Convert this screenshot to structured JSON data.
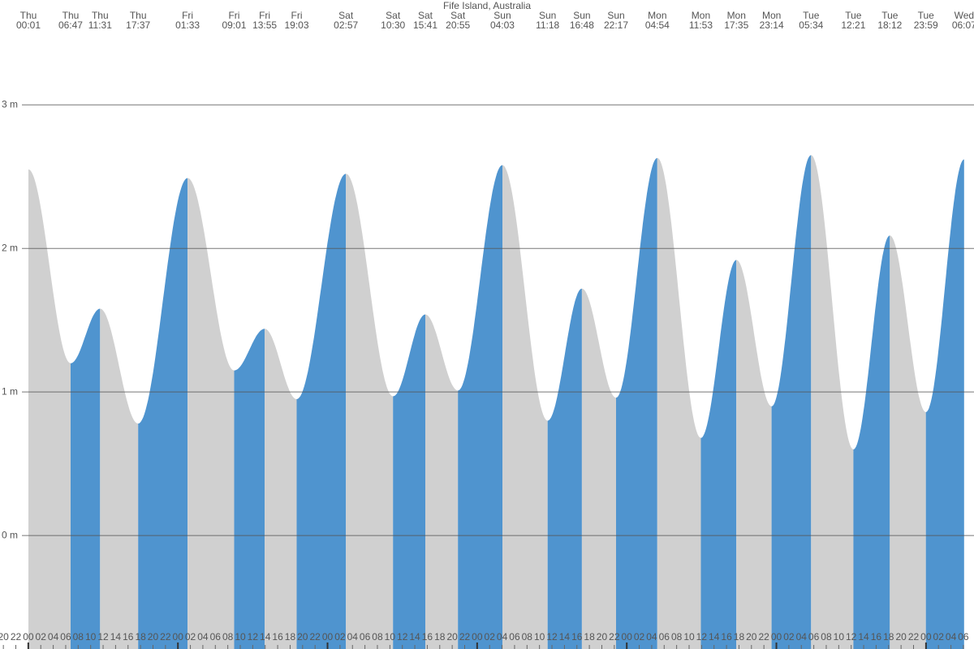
{
  "chart_data": {
    "type": "tide",
    "title": "Fife Island, Australia",
    "days": [
      "Thu",
      "Thu",
      "Thu",
      "Thu",
      "Fri",
      "Fri",
      "Fri",
      "Fri",
      "Sat",
      "Sat",
      "Sat",
      "Sat",
      "Sun",
      "Sun",
      "Sun",
      "Sun",
      "Mon",
      "Mon",
      "Mon",
      "Mon",
      "Tue",
      "Tue",
      "Tue",
      "Tue",
      "Wed"
    ],
    "times": [
      "00:01",
      "06:47",
      "11:31",
      "17:37",
      "01:33",
      "09:01",
      "13:55",
      "19:03",
      "02:57",
      "10:30",
      "15:41",
      "20:55",
      "04:03",
      "11:18",
      "16:48",
      "22:17",
      "04:54",
      "11:53",
      "17:35",
      "23:14",
      "05:34",
      "12:21",
      "18:12",
      "23:59",
      "06:07"
    ],
    "values": [
      2.55,
      1.2,
      1.58,
      0.78,
      2.49,
      1.15,
      1.44,
      0.95,
      2.52,
      0.97,
      1.54,
      1.01,
      2.58,
      0.8,
      1.72,
      0.96,
      2.63,
      0.68,
      1.92,
      0.9,
      2.65,
      0.6,
      2.09,
      0.86,
      2.62
    ],
    "rising_color": "#4f94cf",
    "falling_color": "#d0d0d0",
    "ylim": [
      -0.79,
      3.73
    ],
    "yticks": [
      {
        "value": 0,
        "label": "0 m"
      },
      {
        "value": 1,
        "label": "1 m"
      },
      {
        "value": 2,
        "label": "2 m"
      },
      {
        "value": 3,
        "label": "3 m"
      }
    ],
    "grid": true,
    "xlim": [
      -4.54,
      151.7
    ],
    "xticks": [
      {
        "value": -4,
        "label": "20"
      },
      {
        "value": -2,
        "label": "22"
      },
      {
        "value": 0,
        "label": "00"
      },
      {
        "value": 2,
        "label": "02"
      },
      {
        "value": 4,
        "label": "04"
      },
      {
        "value": 6,
        "label": "06"
      },
      {
        "value": 8,
        "label": "08"
      },
      {
        "value": 10,
        "label": "10"
      },
      {
        "value": 12,
        "label": "12"
      },
      {
        "value": 14,
        "label": "14"
      },
      {
        "value": 16,
        "label": "16"
      },
      {
        "value": 18,
        "label": "18"
      },
      {
        "value": 20,
        "label": "20"
      },
      {
        "value": 22,
        "label": "22"
      },
      {
        "value": 24,
        "label": "00"
      },
      {
        "value": 26,
        "label": "02"
      },
      {
        "value": 28,
        "label": "04"
      },
      {
        "value": 30,
        "label": "06"
      },
      {
        "value": 32,
        "label": "08"
      },
      {
        "value": 34,
        "label": "10"
      },
      {
        "value": 36,
        "label": "12"
      },
      {
        "value": 38,
        "label": "14"
      },
      {
        "value": 40,
        "label": "16"
      },
      {
        "value": 42,
        "label": "18"
      },
      {
        "value": 44,
        "label": "20"
      },
      {
        "value": 46,
        "label": "22"
      },
      {
        "value": 48,
        "label": "00"
      },
      {
        "value": 50,
        "label": "02"
      },
      {
        "value": 52,
        "label": "04"
      },
      {
        "value": 54,
        "label": "06"
      },
      {
        "value": 56,
        "label": "08"
      },
      {
        "value": 58,
        "label": "10"
      },
      {
        "value": 60,
        "label": "12"
      },
      {
        "value": 62,
        "label": "14"
      },
      {
        "value": 64,
        "label": "16"
      },
      {
        "value": 66,
        "label": "18"
      },
      {
        "value": 68,
        "label": "20"
      },
      {
        "value": 70,
        "label": "22"
      },
      {
        "value": 72,
        "label": "00"
      },
      {
        "value": 74,
        "label": "02"
      },
      {
        "value": 76,
        "label": "04"
      },
      {
        "value": 78,
        "label": "06"
      },
      {
        "value": 80,
        "label": "08"
      },
      {
        "value": 82,
        "label": "10"
      },
      {
        "value": 84,
        "label": "12"
      },
      {
        "value": 86,
        "label": "14"
      },
      {
        "value": 88,
        "label": "16"
      },
      {
        "value": 90,
        "label": "18"
      },
      {
        "value": 92,
        "label": "20"
      },
      {
        "value": 94,
        "label": "22"
      },
      {
        "value": 96,
        "label": "00"
      },
      {
        "value": 98,
        "label": "02"
      },
      {
        "value": 100,
        "label": "04"
      },
      {
        "value": 102,
        "label": "06"
      },
      {
        "value": 104,
        "label": "08"
      },
      {
        "value": 106,
        "label": "10"
      },
      {
        "value": 108,
        "label": "12"
      },
      {
        "value": 110,
        "label": "14"
      },
      {
        "value": 112,
        "label": "16"
      },
      {
        "value": 114,
        "label": "18"
      },
      {
        "value": 116,
        "label": "20"
      },
      {
        "value": 118,
        "label": "22"
      },
      {
        "value": 120,
        "label": "00"
      },
      {
        "value": 122,
        "label": "02"
      },
      {
        "value": 124,
        "label": "04"
      },
      {
        "value": 126,
        "label": "06"
      },
      {
        "value": 128,
        "label": "08"
      },
      {
        "value": 130,
        "label": "10"
      },
      {
        "value": 132,
        "label": "12"
      },
      {
        "value": 134,
        "label": "14"
      },
      {
        "value": 136,
        "label": "16"
      },
      {
        "value": 138,
        "label": "18"
      },
      {
        "value": 140,
        "label": "20"
      },
      {
        "value": 142,
        "label": "22"
      },
      {
        "value": 144,
        "label": "00"
      },
      {
        "value": 146,
        "label": "02"
      },
      {
        "value": 148,
        "label": "04"
      },
      {
        "value": 150,
        "label": "06"
      }
    ]
  }
}
